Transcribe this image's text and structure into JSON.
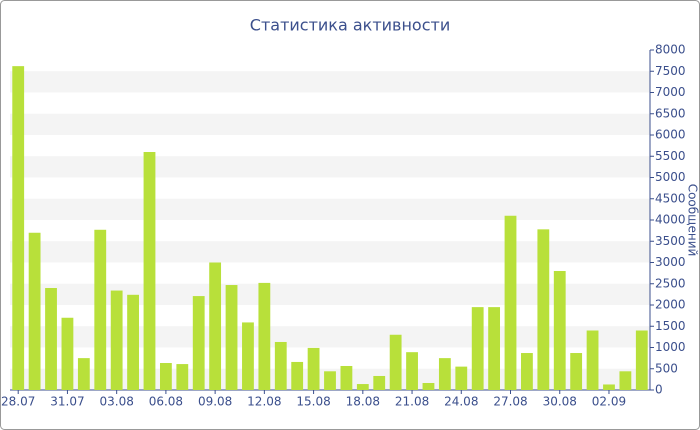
{
  "chart_data": {
    "type": "bar",
    "title": "Статистика активности",
    "y_label": "Сообщений",
    "categories": [
      "28.07",
      null,
      null,
      "31.07",
      null,
      null,
      "03.08",
      null,
      null,
      "06.08",
      null,
      null,
      "09.08",
      null,
      null,
      "12.08",
      null,
      null,
      "15.08",
      null,
      null,
      "18.08",
      null,
      null,
      "21.08",
      null,
      null,
      "24.08",
      null,
      null,
      "27.08",
      null,
      null,
      "30.08",
      null,
      null,
      "02.09",
      null,
      null
    ],
    "values": [
      7620,
      3700,
      2400,
      1700,
      750,
      3770,
      2340,
      2240,
      5600,
      635,
      610,
      2210,
      3000,
      2470,
      1590,
      2520,
      1130,
      660,
      990,
      440,
      565,
      140,
      330,
      1300,
      890,
      165,
      750,
      550,
      1950,
      1950,
      4100,
      870,
      3780,
      2800,
      870,
      1400,
      130,
      440,
      1400
    ],
    "color": "#b8e03a",
    "ylim": [
      0,
      8000
    ],
    "yticks": [
      0,
      500,
      1000,
      1500,
      2000,
      2500,
      3000,
      3500,
      4000,
      4500,
      5000,
      5500,
      6000,
      6500,
      7000,
      7500,
      8000
    ],
    "grid": true
  }
}
